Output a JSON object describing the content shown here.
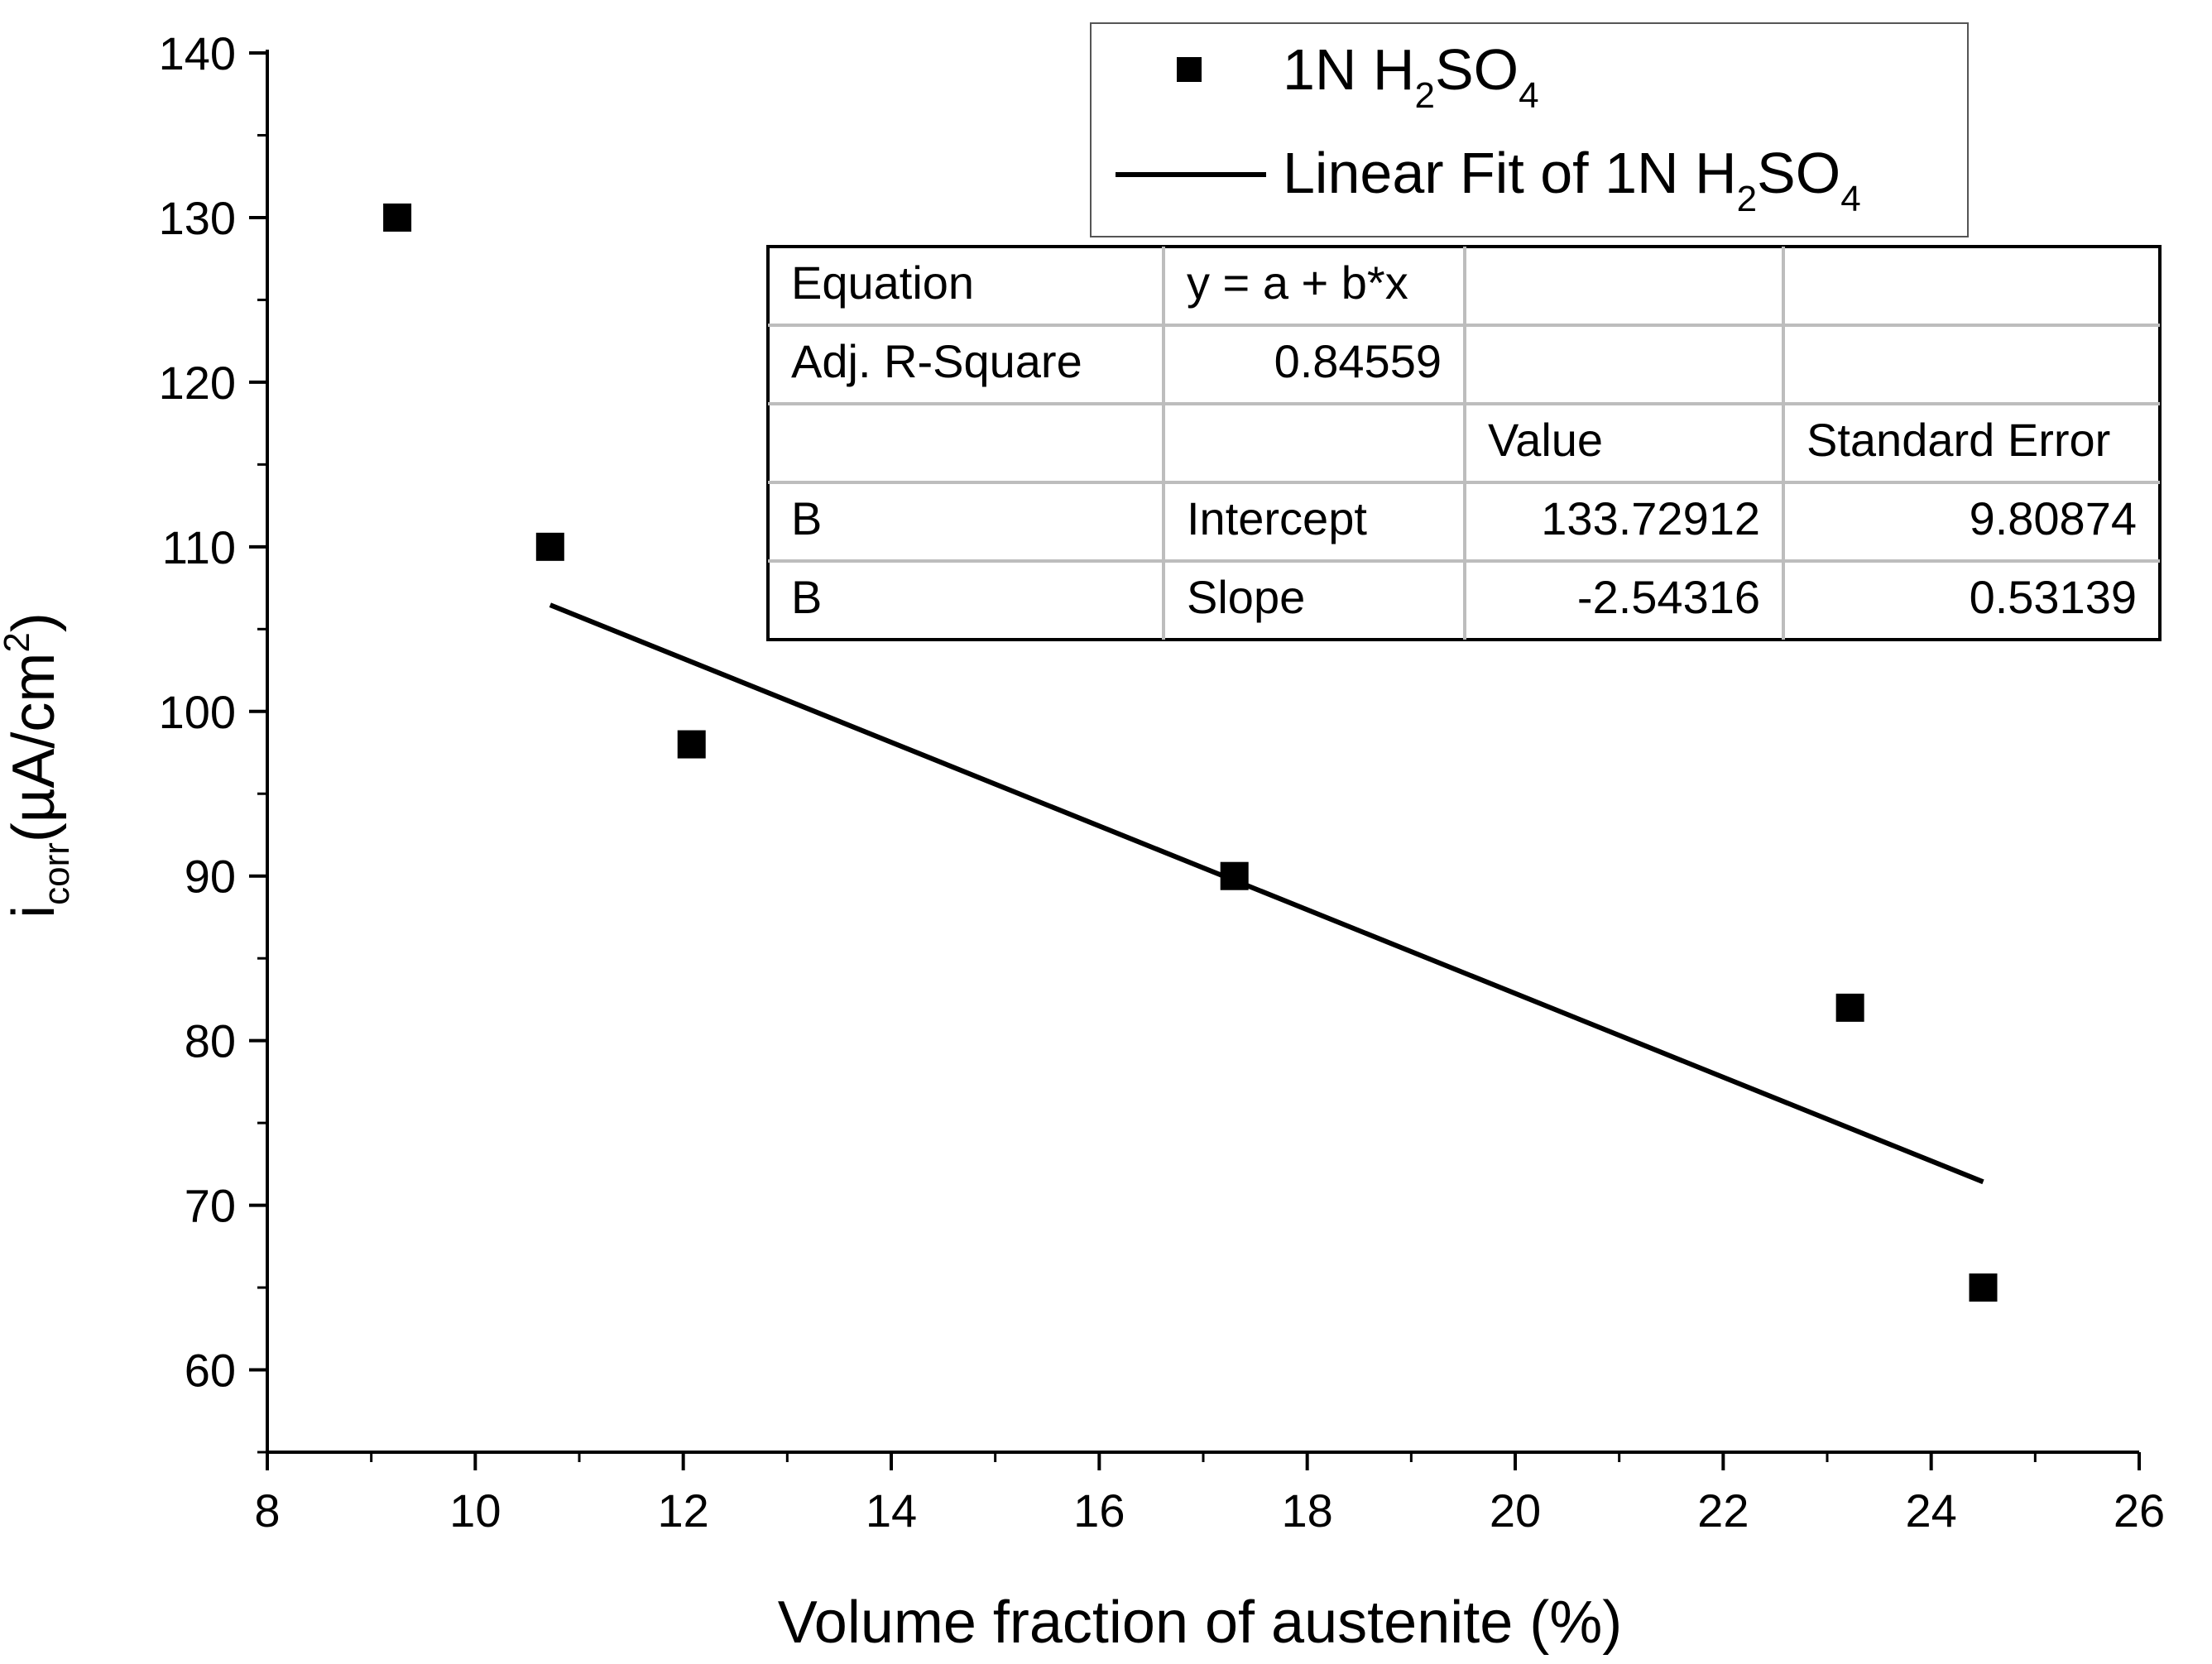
{
  "chart_data": {
    "type": "scatter",
    "title": "",
    "xlabel": "Volume fraction of austenite (%)",
    "ylabel": {
      "main": "i",
      "sub": "corr",
      "unit": "(µA/cm",
      "sup": "2",
      "close": ")"
    },
    "xlim": [
      8,
      26
    ],
    "ylim": [
      55,
      140
    ],
    "x_ticks": [
      8,
      10,
      12,
      14,
      16,
      18,
      20,
      22,
      24,
      26
    ],
    "y_ticks": [
      60,
      70,
      80,
      90,
      100,
      110,
      120,
      130,
      140
    ],
    "series": [
      {
        "name": "1N H2SO4",
        "marker": "square",
        "color": "#000000",
        "x": [
          9.25,
          10.72,
          12.08,
          17.3,
          23.22,
          24.5
        ],
        "y": [
          130,
          110,
          98,
          90,
          82,
          65
        ]
      }
    ],
    "fit": {
      "name": "Linear Fit of 1N H2SO4",
      "intercept": 133.72912,
      "slope": -2.54316,
      "x_range": [
        10.72,
        24.5
      ],
      "color": "#000000"
    },
    "legend": {
      "position": "top-right",
      "items": [
        {
          "kind": "marker",
          "parts": {
            "a": "1N H",
            "s1": "2",
            "b": "SO",
            "s2": "4"
          }
        },
        {
          "kind": "line",
          "parts": {
            "a": "Linear Fit of 1N H",
            "s1": "2",
            "b": "SO",
            "s2": "4"
          }
        }
      ]
    },
    "stats_table": {
      "rows": [
        [
          "Equation",
          "y = a + b*x",
          "",
          ""
        ],
        [
          "Adj. R-Square",
          "0.84559",
          "",
          ""
        ],
        [
          "",
          "",
          "Value",
          "Standard Error"
        ],
        [
          "B",
          "Intercept",
          "133.72912",
          "9.80874"
        ],
        [
          "B",
          "Slope",
          "-2.54316",
          "0.53139"
        ]
      ]
    }
  }
}
